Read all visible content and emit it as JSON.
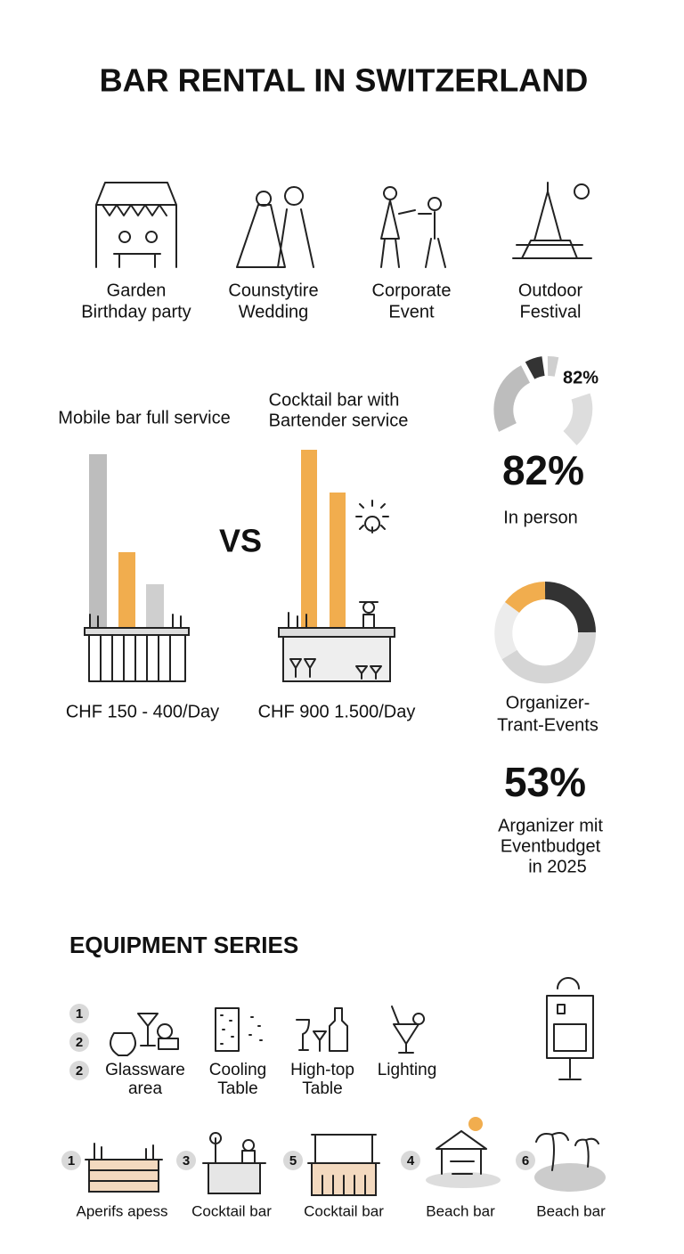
{
  "header": {
    "title": "BAR RENTAL IN SWITZERLAND"
  },
  "events": [
    {
      "lines": [
        "Garden",
        "Birthday party"
      ]
    },
    {
      "lines": [
        "Counstytire",
        "Wedding"
      ]
    },
    {
      "lines": [
        "Corporate",
        "Event"
      ]
    },
    {
      "lines": [
        "Outdoor",
        "Festival"
      ]
    }
  ],
  "comparison": {
    "left": {
      "title": [
        "Mobile bar full service"
      ],
      "price": "CHF 150 - 400/Day"
    },
    "versus": "VS",
    "right": {
      "title": [
        "Cocktail bar with",
        "Bartender service"
      ],
      "price": "CHF 900 1.500/Day"
    }
  },
  "stats": {
    "first": {
      "donut_label": "82%",
      "big": "82%",
      "caption": [
        "In person"
      ]
    },
    "second": {
      "caption_top": [
        "Organizer-",
        "Trant-Events"
      ],
      "big": "53%",
      "caption": [
        "Arganizer mit",
        "Eventbudget",
        "in 2025"
      ]
    }
  },
  "equipment": {
    "title": "EQUIPMENT SERIES",
    "badges": [
      "1",
      "2",
      "2"
    ],
    "items": [
      {
        "lines": [
          "Glassware",
          "area"
        ]
      },
      {
        "lines": [
          "Cooling",
          "Table"
        ]
      },
      {
        "lines": [
          "High-top",
          "Table"
        ]
      },
      {
        "lines": [
          "Lighting"
        ]
      }
    ]
  },
  "bars": [
    {
      "number": "1",
      "label": "Aperifs apess"
    },
    {
      "number": "3",
      "label": "Cocktail bar"
    },
    {
      "number": "5",
      "label": "Cocktail bar"
    },
    {
      "number": "4",
      "label": "Beach bar"
    },
    {
      "number": "6",
      "label": "Beach bar"
    }
  ]
}
